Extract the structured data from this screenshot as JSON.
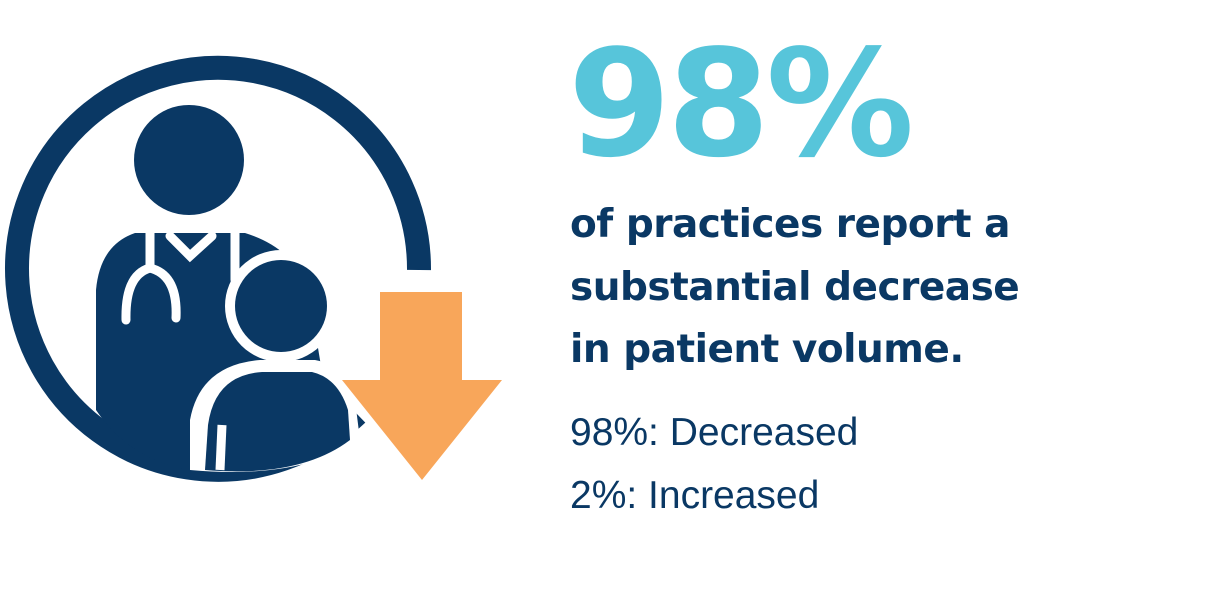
{
  "headline": "98%",
  "statement": {
    "lines": [
      "of practices report a",
      "substantial decrease",
      "in patient volume."
    ]
  },
  "breakdown": [
    "98%: Decreased",
    "2%: Increased"
  ]
}
